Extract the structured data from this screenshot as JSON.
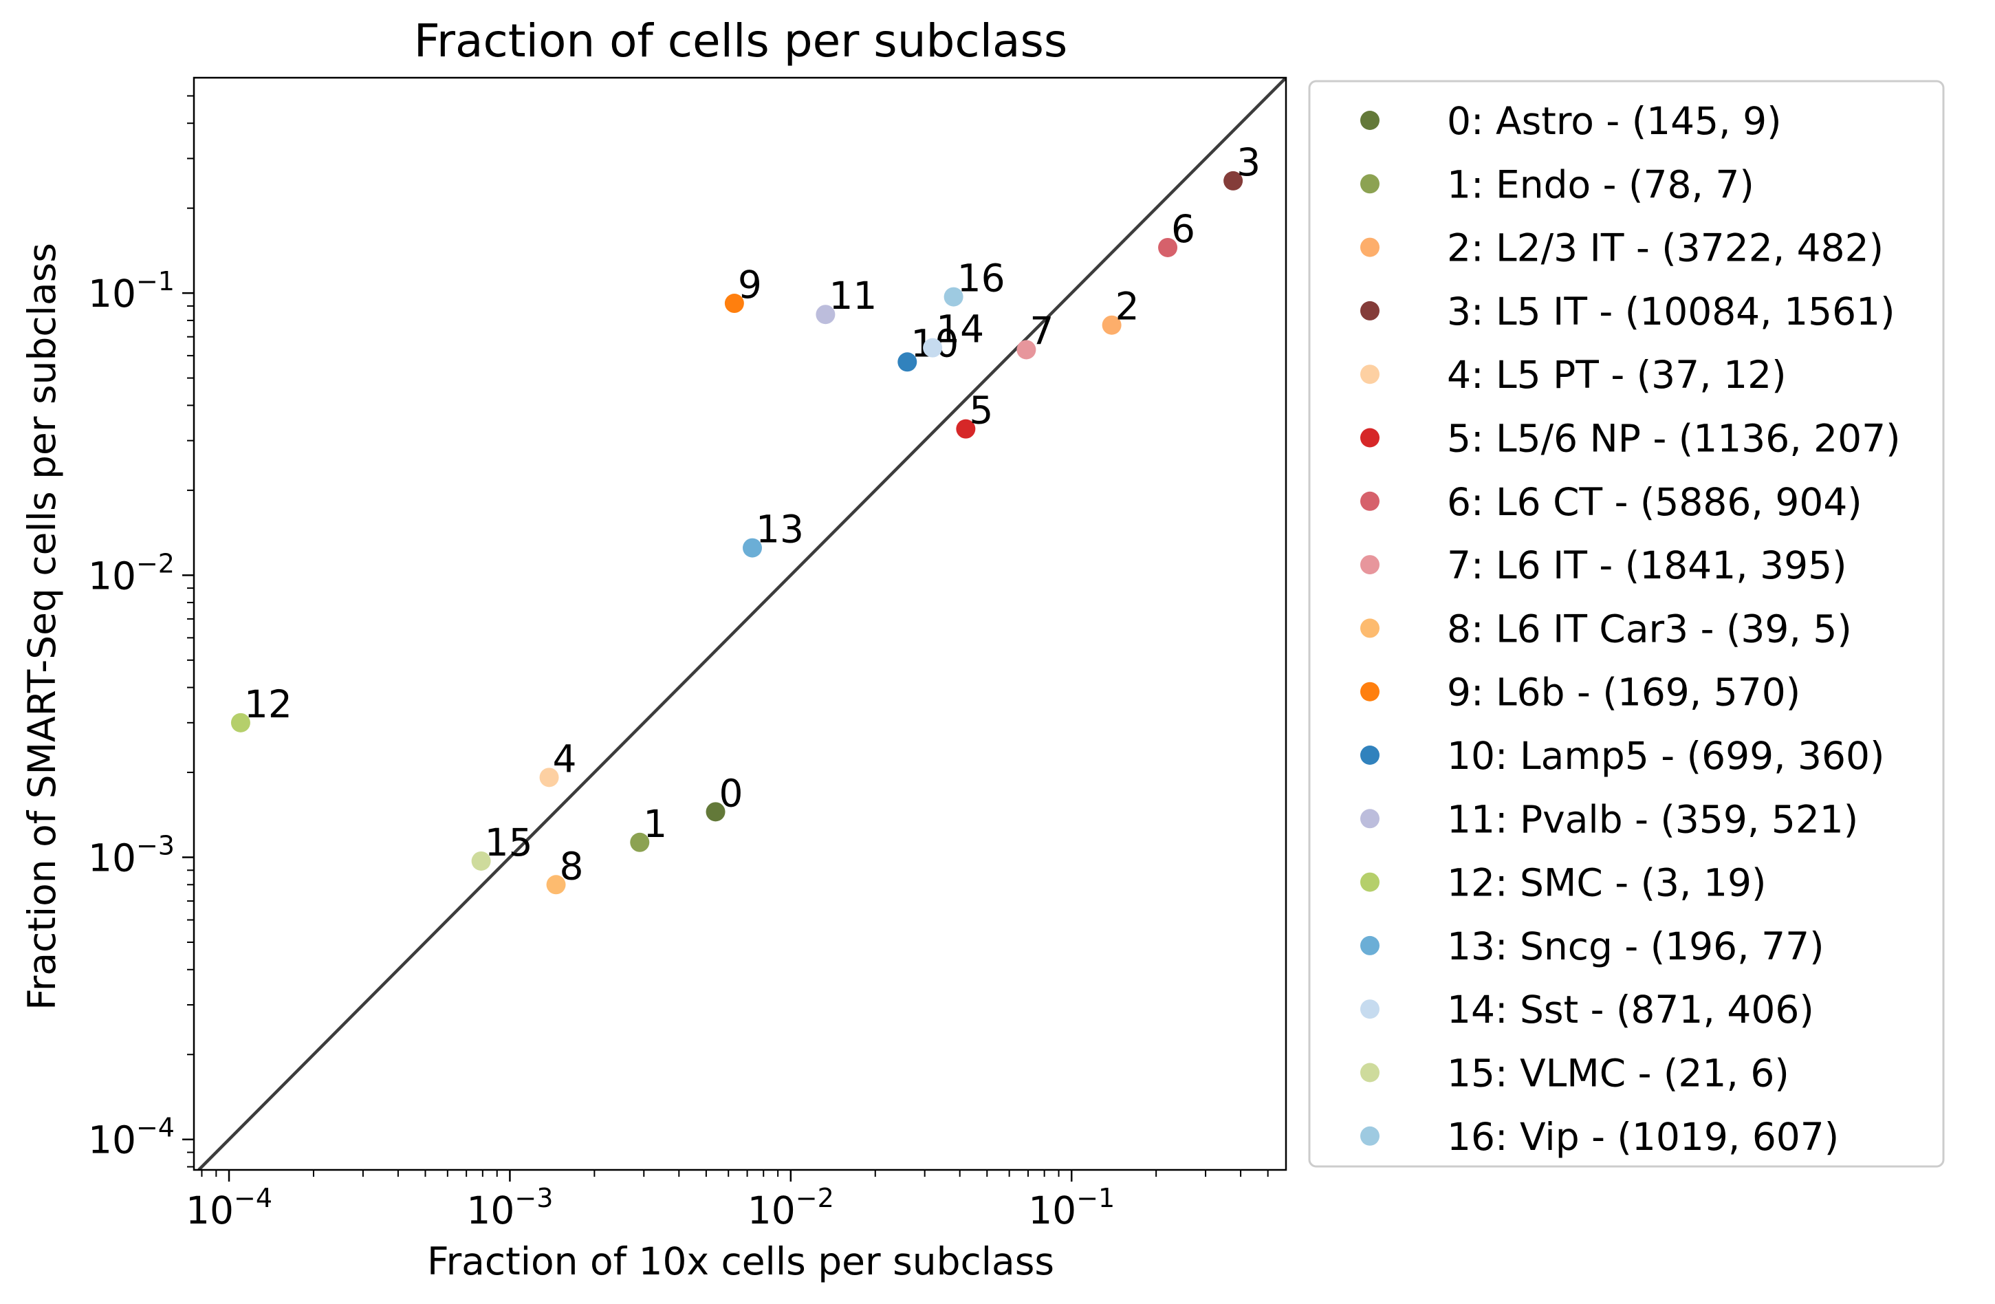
{
  "chart_data": {
    "type": "scatter",
    "title": "Fraction of cells per subclass",
    "xlabel": "Fraction of 10x cells per subclass",
    "ylabel": "Fraction of SMART-Seq cells per subclass",
    "xscale": "log",
    "yscale": "log",
    "xlim": [
      7.5e-05,
      0.58
    ],
    "ylim": [
      7.8e-05,
      0.58
    ],
    "ticks": [
      {
        "value": 0.0001,
        "base": "10",
        "exp": "−4"
      },
      {
        "value": 0.001,
        "base": "10",
        "exp": "−3"
      },
      {
        "value": 0.01,
        "base": "10",
        "exp": "−2"
      },
      {
        "value": 0.1,
        "base": "10",
        "exp": "−1"
      }
    ],
    "reference_line": "y = x",
    "legend_position": "outside-right",
    "points": [
      {
        "id": "0",
        "legend": "0: Astro - (145, 9)",
        "x": 0.0054,
        "y": 0.00145,
        "color": "#637939"
      },
      {
        "id": "1",
        "legend": "1: Endo - (78, 7)",
        "x": 0.0029,
        "y": 0.00113,
        "color": "#8ca252"
      },
      {
        "id": "2",
        "legend": "2: L2/3 IT - (3722, 482)",
        "x": 0.139,
        "y": 0.077,
        "color": "#fdae6b"
      },
      {
        "id": "3",
        "legend": "3: L5 IT - (10084, 1561)",
        "x": 0.376,
        "y": 0.25,
        "color": "#843c39"
      },
      {
        "id": "4",
        "legend": "4: L5 PT - (37, 12)",
        "x": 0.00138,
        "y": 0.00192,
        "color": "#fdd0a2"
      },
      {
        "id": "5",
        "legend": "5: L5/6 NP - (1136, 207)",
        "x": 0.042,
        "y": 0.033,
        "color": "#d62728"
      },
      {
        "id": "6",
        "legend": "6: L6 CT - (5886, 904)",
        "x": 0.22,
        "y": 0.145,
        "color": "#d6616b"
      },
      {
        "id": "7",
        "legend": "7: L6 IT - (1841, 395)",
        "x": 0.069,
        "y": 0.063,
        "color": "#e7969c"
      },
      {
        "id": "8",
        "legend": "8: L6 IT Car3 - (39, 5)",
        "x": 0.00146,
        "y": 0.0008,
        "color": "#fdbb6f"
      },
      {
        "id": "9",
        "legend": "9: L6b - (169, 570)",
        "x": 0.0063,
        "y": 0.092,
        "color": "#ff7f0e"
      },
      {
        "id": "10",
        "legend": "10: Lamp5 - (699, 360)",
        "x": 0.026,
        "y": 0.057,
        "color": "#3182bd"
      },
      {
        "id": "11",
        "legend": "11: Pvalb - (359, 521)",
        "x": 0.0133,
        "y": 0.084,
        "color": "#bcbddc"
      },
      {
        "id": "12",
        "legend": "12: SMC - (3, 19)",
        "x": 0.00011,
        "y": 0.003,
        "color": "#b5cf6b"
      },
      {
        "id": "13",
        "legend": "13: Sncg - (196, 77)",
        "x": 0.0073,
        "y": 0.0125,
        "color": "#6baed6"
      },
      {
        "id": "14",
        "legend": "14: Sst - (871, 406)",
        "x": 0.032,
        "y": 0.064,
        "color": "#c6dbef"
      },
      {
        "id": "15",
        "legend": "15: VLMC - (21, 6)",
        "x": 0.00079,
        "y": 0.00097,
        "color": "#cedb9c"
      },
      {
        "id": "16",
        "legend": "16: Vip - (1019, 607)",
        "x": 0.038,
        "y": 0.097,
        "color": "#9ecae1"
      }
    ]
  }
}
